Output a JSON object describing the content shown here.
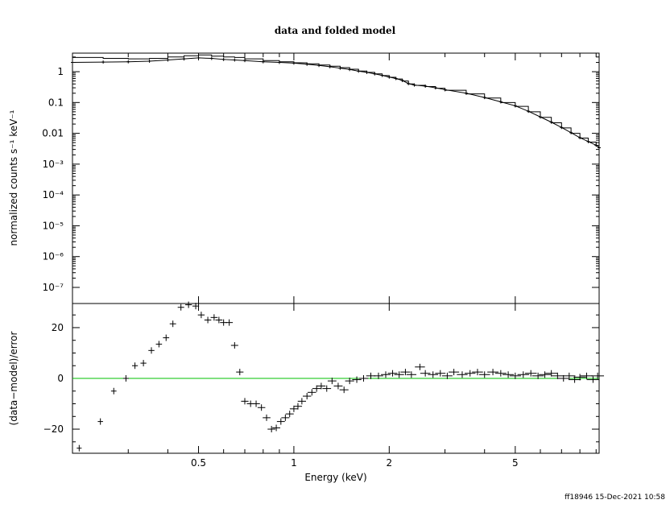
{
  "chart_data": [
    {
      "panel": "top",
      "type": "line",
      "title": "data and folded model",
      "xlabel": "",
      "ylabel": "normalized counts s⁻¹ keV⁻¹",
      "xscale": "log",
      "yscale": "log",
      "xlim": [
        0.2,
        9.2
      ],
      "ylim": [
        3e-08,
        4
      ],
      "yticks": [
        "1",
        "0.1",
        "0.01",
        "10⁻³",
        "10⁻⁴",
        "10⁻⁵",
        "10⁻⁶",
        "10⁻⁷"
      ],
      "ytick_values": [
        1,
        0.1,
        0.01,
        0.001,
        0.0001,
        1e-05,
        1e-06,
        1e-07
      ],
      "series": [
        {
          "kind": "model-step",
          "x": [
            0.2,
            0.25,
            0.3,
            0.35,
            0.4,
            0.45,
            0.5,
            0.55,
            0.6,
            0.65,
            0.7,
            0.8,
            0.9,
            1.0,
            1.1,
            1.2,
            1.3,
            1.4,
            1.5,
            1.6,
            1.7,
            1.8,
            1.9,
            2.0,
            2.1,
            2.2,
            2.3,
            2.4,
            2.6,
            2.8,
            3.0,
            3.5,
            4.0,
            4.5,
            5.0,
            5.5,
            6.0,
            6.5,
            7.0,
            7.5,
            8.0,
            8.5,
            9.0,
            9.2
          ],
          "y": [
            2.9,
            2.7,
            2.6,
            2.7,
            3.0,
            3.3,
            3.5,
            3.2,
            3.0,
            2.9,
            2.6,
            2.3,
            2.1,
            1.95,
            1.8,
            1.65,
            1.5,
            1.35,
            1.2,
            1.05,
            0.95,
            0.85,
            0.75,
            0.66,
            0.58,
            0.5,
            0.4,
            0.36,
            0.33,
            0.29,
            0.25,
            0.19,
            0.14,
            0.1,
            0.075,
            0.05,
            0.033,
            0.022,
            0.015,
            0.01,
            0.007,
            0.0052,
            0.004,
            0.0035
          ]
        },
        {
          "kind": "data",
          "x": [
            0.2,
            0.25,
            0.3,
            0.35,
            0.4,
            0.45,
            0.5,
            0.55,
            0.6,
            0.65,
            0.7,
            0.8,
            0.9,
            1.0,
            1.1,
            1.2,
            1.3,
            1.4,
            1.5,
            1.6,
            1.7,
            1.8,
            1.9,
            2.0,
            2.1,
            2.2,
            2.3,
            2.4,
            2.6,
            2.8,
            3.0,
            3.5,
            4.0,
            4.5,
            5.0,
            5.5,
            6.0,
            6.5,
            7.0,
            7.5,
            8.0,
            8.5,
            9.0,
            9.2
          ],
          "y": [
            2.0,
            2.05,
            2.1,
            2.2,
            2.4,
            2.6,
            2.8,
            2.7,
            2.5,
            2.4,
            2.3,
            2.1,
            2.0,
            1.9,
            1.75,
            1.6,
            1.45,
            1.3,
            1.18,
            1.04,
            0.95,
            0.85,
            0.76,
            0.67,
            0.6,
            0.52,
            0.41,
            0.37,
            0.34,
            0.3,
            0.26,
            0.2,
            0.145,
            0.105,
            0.078,
            0.052,
            0.034,
            0.023,
            0.0155,
            0.0105,
            0.0072,
            0.0054,
            0.0041,
            0.0034
          ]
        }
      ]
    },
    {
      "panel": "bottom",
      "type": "scatter",
      "xlabel": "Energy (keV)",
      "ylabel": "(data−model)/error",
      "xscale": "log",
      "xlim": [
        0.2,
        9.2
      ],
      "ylim": [
        -29.5,
        29.5
      ],
      "xticks": [
        "0.5",
        "1",
        "2",
        "5"
      ],
      "xtick_values": [
        0.5,
        1,
        2,
        5
      ],
      "yticks": [
        "20",
        "0",
        "−20"
      ],
      "ytick_values": [
        20,
        0,
        -20
      ],
      "zero_line_color": "#00c000",
      "x": [
        0.21,
        0.245,
        0.27,
        0.295,
        0.315,
        0.335,
        0.355,
        0.375,
        0.395,
        0.415,
        0.44,
        0.465,
        0.49,
        0.51,
        0.535,
        0.56,
        0.58,
        0.6,
        0.625,
        0.65,
        0.675,
        0.7,
        0.73,
        0.76,
        0.79,
        0.82,
        0.85,
        0.88,
        0.91,
        0.94,
        0.97,
        1.0,
        1.03,
        1.06,
        1.1,
        1.14,
        1.18,
        1.22,
        1.27,
        1.32,
        1.38,
        1.44,
        1.5,
        1.58,
        1.66,
        1.75,
        1.85,
        1.95,
        2.05,
        2.15,
        2.25,
        2.35,
        2.5,
        2.6,
        2.75,
        2.9,
        3.05,
        3.2,
        3.4,
        3.6,
        3.8,
        4.0,
        4.25,
        4.5,
        4.75,
        5.0,
        5.3,
        5.6,
        5.9,
        6.2,
        6.5,
        6.8,
        7.1,
        7.4,
        7.7,
        8.0,
        8.4,
        8.8,
        9.1
      ],
      "y": [
        -27.5,
        -17,
        -5,
        0,
        5,
        6,
        11,
        13.5,
        16,
        21.5,
        28,
        29,
        28.5,
        25,
        23,
        24,
        23,
        22,
        22,
        13,
        2.5,
        -9,
        -10,
        -10,
        -11.5,
        -15.5,
        -20,
        -19.5,
        -17,
        -15.5,
        -14,
        -12,
        -11,
        -9,
        -7,
        -5.5,
        -4,
        -3,
        -4,
        -1,
        -3,
        -4.5,
        -1,
        -0.5,
        0,
        1,
        1,
        1.5,
        2,
        1.5,
        2.5,
        1.5,
        4.5,
        2,
        1.5,
        2,
        1,
        2.5,
        1.5,
        2,
        2.5,
        1.5,
        2.5,
        2,
        1.5,
        1,
        1.5,
        2,
        1,
        1.5,
        2,
        1,
        0,
        1,
        -0.5,
        0.5,
        1,
        -0.5,
        1
      ]
    }
  ],
  "footer": {
    "stamp": "ff18946 15-Dec-2021 10:58"
  }
}
